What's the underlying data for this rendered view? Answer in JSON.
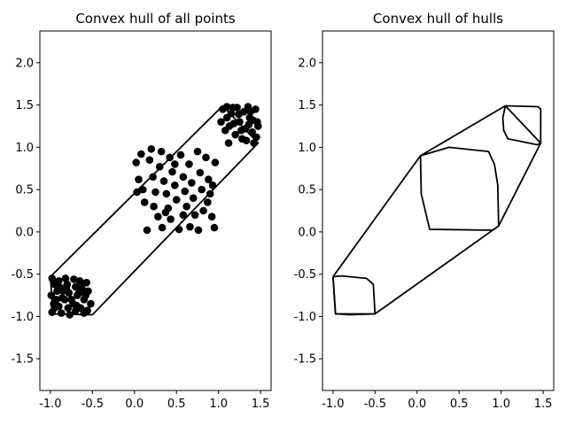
{
  "chart_data": [
    {
      "type": "scatter",
      "title": "Convex hull of all points",
      "xlim": [
        -1.125,
        1.625
      ],
      "ylim": [
        -1.875,
        2.375
      ],
      "xticks": [
        "-1.0",
        "-0.5",
        "0.0",
        "0.5",
        "1.0",
        "1.5"
      ],
      "xtick_values": [
        -1.0,
        -0.5,
        0.0,
        0.5,
        1.0,
        1.5
      ],
      "yticks": [
        "-1.5",
        "-1.0",
        "-0.5",
        "0.0",
        "0.5",
        "1.0",
        "1.5",
        "2.0"
      ],
      "ytick_values": [
        -1.5,
        -1.0,
        -0.5,
        0.0,
        0.5,
        1.0,
        1.5,
        2.0
      ],
      "hull": [
        [
          -1.0,
          -0.53
        ],
        [
          1.05,
          1.49
        ],
        [
          1.47,
          1.05
        ],
        [
          -0.5,
          -0.98
        ],
        [
          -0.97,
          -0.97
        ],
        [
          -1.0,
          -0.53
        ]
      ],
      "points": [
        [
          -0.98,
          -0.55
        ],
        [
          -0.95,
          -0.62
        ],
        [
          -0.92,
          -0.7
        ],
        [
          -0.99,
          -0.75
        ],
        [
          -0.96,
          -0.85
        ],
        [
          -0.98,
          -0.95
        ],
        [
          -0.9,
          -0.58
        ],
        [
          -0.88,
          -0.66
        ],
        [
          -0.86,
          -0.78
        ],
        [
          -0.9,
          -0.88
        ],
        [
          -0.87,
          -0.96
        ],
        [
          -0.82,
          -0.55
        ],
        [
          -0.8,
          -0.62
        ],
        [
          -0.78,
          -0.72
        ],
        [
          -0.83,
          -0.8
        ],
        [
          -0.79,
          -0.9
        ],
        [
          -0.77,
          -0.98
        ],
        [
          -0.72,
          -0.56
        ],
        [
          -0.7,
          -0.65
        ],
        [
          -0.68,
          -0.75
        ],
        [
          -0.73,
          -0.85
        ],
        [
          -0.7,
          -0.93
        ],
        [
          -0.65,
          -0.58
        ],
        [
          -0.62,
          -0.68
        ],
        [
          -0.6,
          -0.8
        ],
        [
          -0.64,
          -0.9
        ],
        [
          -0.6,
          -0.96
        ],
        [
          -0.57,
          -0.6
        ],
        [
          -0.55,
          -0.7
        ],
        [
          -0.52,
          -0.85
        ],
        [
          -0.56,
          -0.93
        ],
        [
          -0.85,
          -0.7
        ],
        [
          -0.75,
          -0.8
        ],
        [
          -0.66,
          -0.72
        ],
        [
          -0.93,
          -0.8
        ],
        [
          -0.58,
          -0.75
        ],
        [
          -0.95,
          -0.9
        ],
        [
          -0.69,
          -0.87
        ],
        [
          -0.81,
          -0.67
        ],
        [
          -0.63,
          -0.62
        ],
        [
          0.02,
          0.82
        ],
        [
          0.08,
          0.92
        ],
        [
          0.05,
          0.62
        ],
        [
          0.03,
          0.47
        ],
        [
          0.1,
          0.5
        ],
        [
          0.12,
          0.35
        ],
        [
          0.18,
          0.85
        ],
        [
          0.2,
          0.98
        ],
        [
          0.22,
          0.65
        ],
        [
          0.25,
          0.47
        ],
        [
          0.15,
          0.02
        ],
        [
          0.28,
          0.18
        ],
        [
          0.3,
          0.77
        ],
        [
          0.32,
          0.95
        ],
        [
          0.35,
          0.6
        ],
        [
          0.38,
          0.45
        ],
        [
          0.4,
          0.28
        ],
        [
          0.33,
          0.05
        ],
        [
          0.42,
          0.88
        ],
        [
          0.45,
          0.71
        ],
        [
          0.48,
          0.55
        ],
        [
          0.5,
          0.38
        ],
        [
          0.43,
          0.15
        ],
        [
          0.55,
          0.91
        ],
        [
          0.58,
          0.65
        ],
        [
          0.6,
          0.48
        ],
        [
          0.62,
          0.3
        ],
        [
          0.53,
          0.03
        ],
        [
          0.65,
          0.8
        ],
        [
          0.68,
          0.58
        ],
        [
          0.7,
          0.4
        ],
        [
          0.72,
          0.2
        ],
        [
          0.66,
          0.06
        ],
        [
          0.75,
          0.95
        ],
        [
          0.78,
          0.7
        ],
        [
          0.8,
          0.5
        ],
        [
          0.82,
          0.25
        ],
        [
          0.76,
          0.02
        ],
        [
          0.85,
          0.88
        ],
        [
          0.88,
          0.62
        ],
        [
          0.9,
          0.45
        ],
        [
          0.92,
          0.18
        ],
        [
          0.95,
          0.05
        ],
        [
          0.96,
          0.82
        ],
        [
          0.93,
          0.55
        ],
        [
          0.87,
          0.35
        ],
        [
          0.58,
          0.2
        ],
        [
          0.37,
          0.23
        ],
        [
          0.23,
          0.3
        ],
        [
          0.48,
          0.8
        ],
        [
          1.05,
          1.45
        ],
        [
          1.1,
          1.35
        ],
        [
          1.08,
          1.2
        ],
        [
          1.12,
          1.05
        ],
        [
          1.15,
          1.4
        ],
        [
          1.18,
          1.28
        ],
        [
          1.2,
          1.15
        ],
        [
          1.22,
          1.47
        ],
        [
          1.25,
          1.3
        ],
        [
          1.28,
          1.1
        ],
        [
          1.3,
          1.42
        ],
        [
          1.32,
          1.22
        ],
        [
          1.35,
          1.48
        ],
        [
          1.37,
          1.35
        ],
        [
          1.4,
          1.18
        ],
        [
          1.42,
          1.05
        ],
        [
          1.44,
          1.45
        ],
        [
          1.46,
          1.3
        ],
        [
          1.45,
          1.12
        ],
        [
          1.47,
          1.25
        ],
        [
          1.1,
          1.48
        ],
        [
          1.13,
          1.25
        ],
        [
          1.24,
          1.39
        ],
        [
          1.33,
          1.08
        ],
        [
          1.38,
          1.42
        ],
        [
          1.41,
          1.32
        ],
        [
          1.03,
          1.3
        ],
        [
          1.17,
          1.47
        ],
        [
          1.27,
          1.2
        ],
        [
          1.36,
          1.27
        ]
      ]
    },
    {
      "type": "line",
      "title": "Convex hull of hulls",
      "xlim": [
        -1.125,
        1.625
      ],
      "ylim": [
        -1.875,
        2.375
      ],
      "xticks": [
        "-1.0",
        "-0.5",
        "0.0",
        "0.5",
        "1.0",
        "1.5"
      ],
      "xtick_values": [
        -1.0,
        -0.5,
        0.0,
        0.5,
        1.0,
        1.5
      ],
      "yticks": [
        "-1.5",
        "-1.0",
        "-0.5",
        "0.0",
        "0.5",
        "1.0",
        "1.5",
        "2.0"
      ],
      "ytick_values": [
        -1.5,
        -1.0,
        -0.5,
        0.0,
        0.5,
        1.0,
        1.5,
        2.0
      ],
      "hulls": [
        [
          [
            -1.0,
            -0.53
          ],
          [
            -0.97,
            -0.97
          ],
          [
            -0.8,
            -0.98
          ],
          [
            -0.5,
            -0.97
          ],
          [
            -0.52,
            -0.62
          ],
          [
            -0.6,
            -0.55
          ],
          [
            -0.9,
            -0.52
          ],
          [
            -1.0,
            -0.53
          ]
        ],
        [
          [
            0.04,
            0.9
          ],
          [
            0.38,
            1.0
          ],
          [
            0.85,
            0.95
          ],
          [
            0.92,
            0.8
          ],
          [
            0.96,
            0.55
          ],
          [
            0.97,
            0.07
          ],
          [
            0.9,
            0.02
          ],
          [
            0.15,
            0.03
          ],
          [
            0.05,
            0.45
          ],
          [
            0.04,
            0.9
          ]
        ],
        [
          [
            1.05,
            1.49
          ],
          [
            1.44,
            1.48
          ],
          [
            1.47,
            1.45
          ],
          [
            1.47,
            1.05
          ],
          [
            1.43,
            1.03
          ],
          [
            1.08,
            1.1
          ],
          [
            1.03,
            1.2
          ],
          [
            1.02,
            1.35
          ],
          [
            1.05,
            1.49
          ]
        ],
        [
          [
            -1.0,
            -0.53
          ],
          [
            0.04,
            0.9
          ],
          [
            1.05,
            1.49
          ],
          [
            1.47,
            1.05
          ],
          [
            0.97,
            0.07
          ],
          [
            -0.5,
            -0.97
          ],
          [
            -0.97,
            -0.97
          ],
          [
            -1.0,
            -0.53
          ]
        ]
      ]
    }
  ]
}
